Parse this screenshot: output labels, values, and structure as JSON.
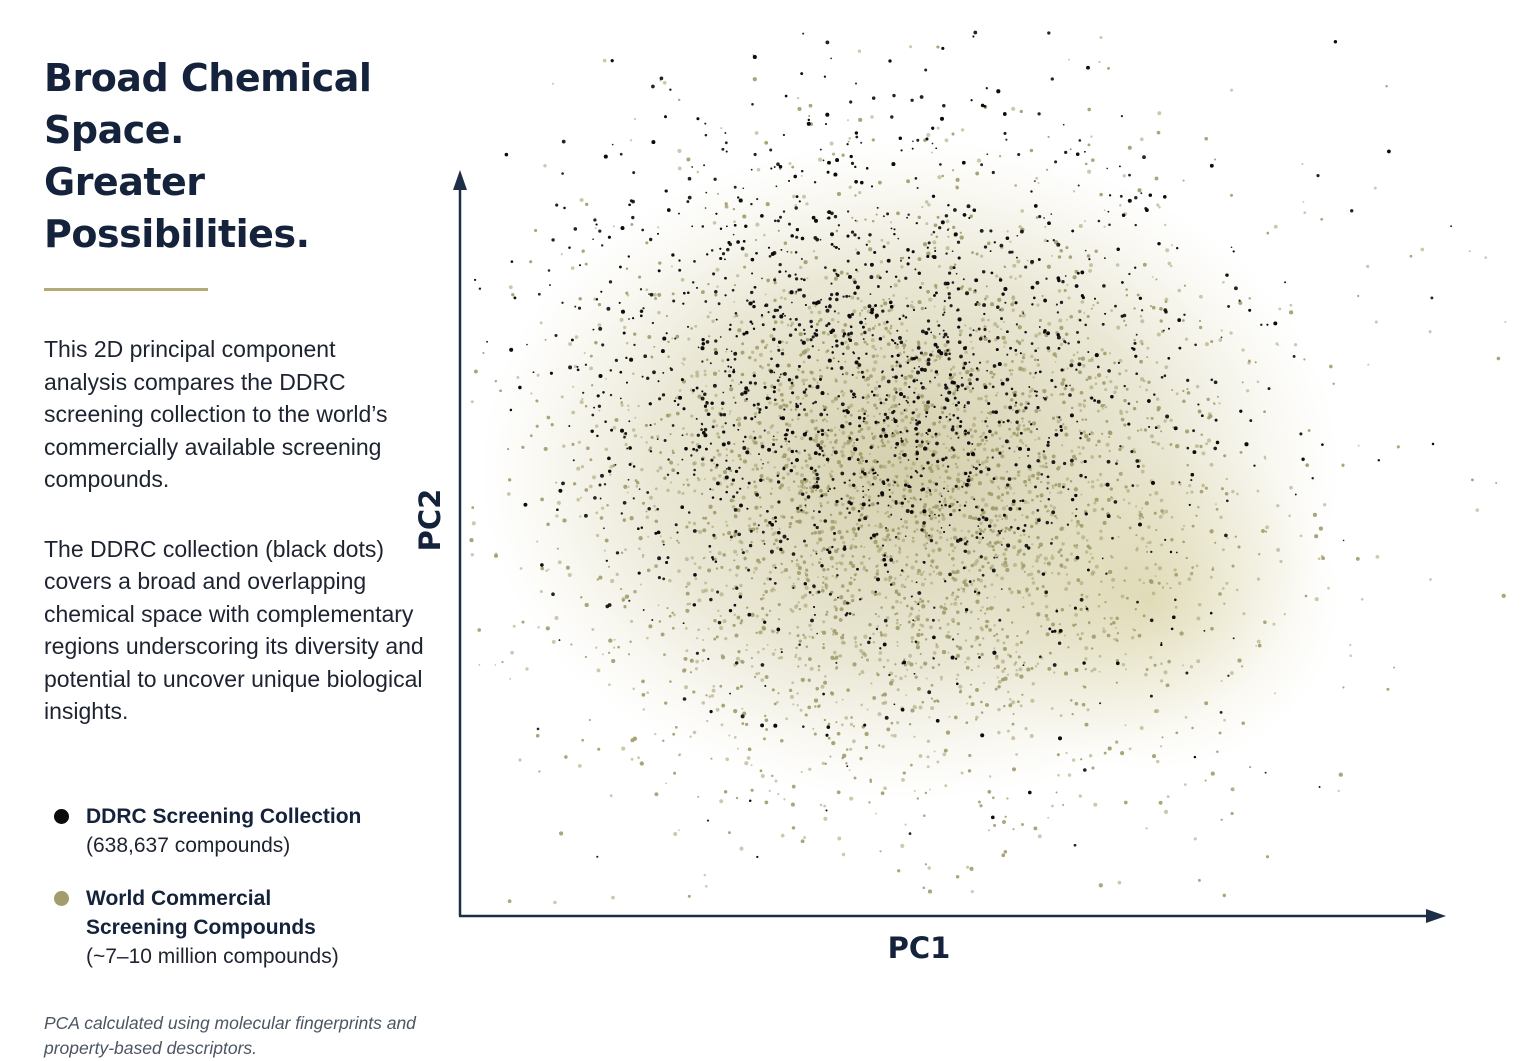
{
  "heading": {
    "line1": "Broad Chemical Space.",
    "line2": "Greater Possibilities."
  },
  "description": {
    "paragraph1": "This 2D principal component analysis compares the DDRC screening collection to the world’s commercially available screening compounds.",
    "paragraph2": "The DDRC collection (black dots) covers a broad and overlapping chemical space with complementary regions underscoring its diversity and potential to uncover unique biological insights."
  },
  "legend": {
    "items": [
      {
        "name": "DDRC Screening Collection",
        "count": "(638,637 compounds)",
        "color": "#0b0b0b"
      },
      {
        "name": "World Commercial Screening Compounds",
        "count": "(~7–10 million compounds)",
        "color": "#a39c6c"
      }
    ]
  },
  "footnote": "PCA calculated using molecular fingerprints and property-based descriptors.",
  "colors": {
    "title": "#14233b",
    "accent": "#b3aa78",
    "axis": "#1e2d48",
    "world_points": "#a8a06a",
    "ddrc_points": "#0b0b0b"
  },
  "chart_data": {
    "type": "scatter",
    "title": "",
    "xlabel": "PC1",
    "ylabel": "PC2",
    "x_ticks": "none",
    "y_ticks": "none",
    "grid": false,
    "legend_placement": "left",
    "series": [
      {
        "name": "DDRC Screening Collection",
        "color": "#0b0b0b",
        "distribution": {
          "center": [
            -0.3,
            0.8
          ],
          "spread": [
            2.9,
            2.0
          ]
        }
      },
      {
        "name": "World Commercial Screening Compounds",
        "color": "#a39c6c",
        "distribution": {
          "center": [
            0.0,
            0.0
          ],
          "spread": [
            3.0,
            2.2
          ]
        }
      }
    ]
  }
}
